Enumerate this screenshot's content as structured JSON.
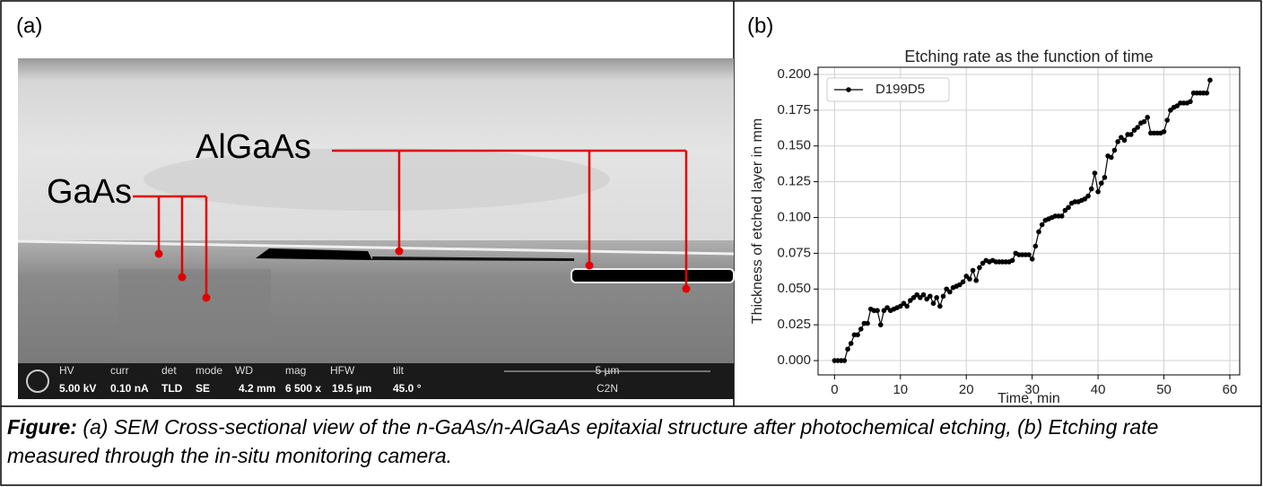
{
  "panel_a": {
    "label": "(a)",
    "layers": [
      "AlGaAs",
      "GaAs"
    ],
    "info_bar": {
      "headers": [
        "HV",
        "curr",
        "det",
        "mode",
        "WD",
        "mag",
        "HFW",
        "tilt"
      ],
      "values": [
        "5.00 kV",
        "0.10 nA",
        "TLD",
        "SE",
        "4.2 mm",
        "6 500 x",
        "19.5 µm",
        "45.0 °"
      ],
      "scale": "5 µm",
      "lab": "C2N"
    }
  },
  "panel_b_label": "(b)",
  "chart_data": {
    "type": "line",
    "title": "Etching rate as the function of time",
    "x_label": "Time, min",
    "y_label": "Thickness of etched layer in mm",
    "x": [
      0,
      0.5,
      1,
      1.5,
      2,
      2.5,
      3,
      3.5,
      4,
      4.5,
      5,
      5.5,
      6,
      6.5,
      7,
      7.5,
      8,
      8.5,
      9,
      9.5,
      10,
      10.5,
      11,
      11.5,
      12,
      12.5,
      13,
      13.5,
      14,
      14.5,
      15,
      15.5,
      16,
      16.5,
      17,
      17.5,
      18,
      18.5,
      19,
      19.5,
      20,
      20.5,
      21,
      21.5,
      22,
      22.5,
      23,
      23.5,
      24,
      24.5,
      25,
      25.5,
      26,
      26.5,
      27,
      27.5,
      28,
      28.5,
      29,
      29.5,
      30,
      30.5,
      31,
      31.5,
      32,
      32.5,
      33,
      33.5,
      34,
      34.5,
      35,
      35.5,
      36,
      36.5,
      37,
      37.5,
      38,
      38.5,
      39,
      39.5,
      40,
      40.5,
      41,
      41.5,
      42,
      42.5,
      43,
      43.5,
      44,
      44.5,
      45,
      45.5,
      46,
      46.5,
      47,
      47.5,
      48,
      48.5,
      49,
      49.5,
      50,
      50.5,
      51,
      51.5,
      52,
      52.5,
      53,
      53.5,
      54,
      54.5,
      55,
      55.5,
      56,
      56.5,
      57
    ],
    "series": [
      {
        "name": "D199D5",
        "color": "#000000",
        "values": [
          0,
          0,
          0,
          0,
          0.008,
          0.012,
          0.018,
          0.018,
          0.022,
          0.026,
          0.026,
          0.036,
          0.035,
          0.035,
          0.025,
          0.035,
          0.037,
          0.035,
          0.036,
          0.037,
          0.038,
          0.04,
          0.038,
          0.042,
          0.044,
          0.046,
          0.044,
          0.046,
          0.043,
          0.045,
          0.04,
          0.044,
          0.038,
          0.045,
          0.05,
          0.048,
          0.051,
          0.052,
          0.053,
          0.055,
          0.059,
          0.057,
          0.063,
          0.056,
          0.065,
          0.068,
          0.07,
          0.069,
          0.07,
          0.069,
          0.069,
          0.069,
          0.069,
          0.069,
          0.07,
          0.075,
          0.074,
          0.074,
          0.074,
          0.074,
          0.071,
          0.08,
          0.09,
          0.095,
          0.098,
          0.099,
          0.1,
          0.101,
          0.101,
          0.101,
          0.105,
          0.107,
          0.11,
          0.111,
          0.111,
          0.112,
          0.113,
          0.115,
          0.12,
          0.131,
          0.118,
          0.124,
          0.128,
          0.143,
          0.142,
          0.147,
          0.153,
          0.156,
          0.154,
          0.158,
          0.158,
          0.161,
          0.163,
          0.166,
          0.167,
          0.17,
          0.159,
          0.159,
          0.159,
          0.159,
          0.16,
          0.168,
          0.175,
          0.177,
          0.178,
          0.18,
          0.18,
          0.18,
          0.181,
          0.187,
          0.187,
          0.187,
          0.187,
          0.187,
          0.196
        ]
      }
    ],
    "xlim": [
      -2.5,
      61.5
    ],
    "ylim": [
      -0.01,
      0.205
    ],
    "xticks": [
      0,
      10,
      20,
      30,
      40,
      50,
      60
    ],
    "yticks": [
      {
        "value": 0,
        "label": "0.000"
      },
      {
        "value": 0.025,
        "label": "0.025"
      },
      {
        "value": 0.05,
        "label": "0.050"
      },
      {
        "value": 0.075,
        "label": "0.075"
      },
      {
        "value": 0.1,
        "label": "0.100"
      },
      {
        "value": 0.125,
        "label": "0.125"
      },
      {
        "value": 0.15,
        "label": "0.150"
      },
      {
        "value": 0.175,
        "label": "0.175"
      },
      {
        "value": 0.2,
        "label": "0.200"
      }
    ],
    "grid": true,
    "legend": "upper left"
  },
  "caption": {
    "label": "Figure:",
    "text": " (a) SEM Cross-sectional view of the n-GaAs/n-AlGaAs epitaxial structure after photochemical etching, (b) Etching rate measured through the in-situ monitoring camera."
  }
}
